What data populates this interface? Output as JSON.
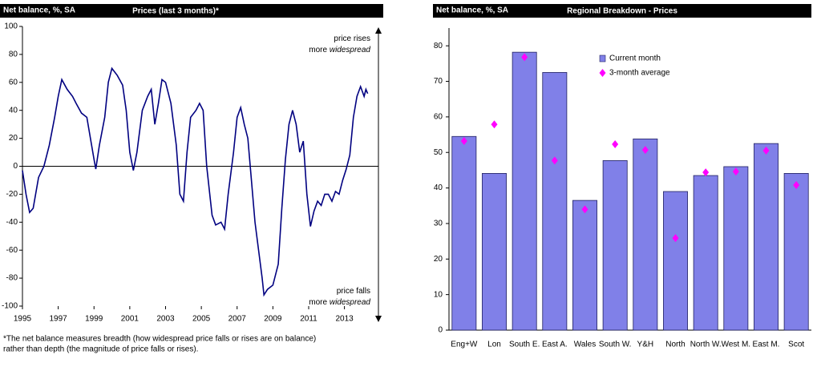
{
  "chart_data": [
    {
      "type": "line",
      "title": "Prices (last 3 months)*",
      "ylabel": "Net balance, %, SA",
      "x": [
        1995.0,
        1995.2,
        1995.4,
        1995.6,
        1995.9,
        1996.2,
        1996.5,
        1996.8,
        1997.0,
        1997.2,
        1997.5,
        1997.8,
        1998.0,
        1998.3,
        1998.6,
        1998.8,
        1999.0,
        1999.1,
        1999.3,
        1999.6,
        1999.8,
        2000.0,
        2000.3,
        2000.6,
        2000.8,
        2001.0,
        2001.2,
        2001.4,
        2001.7,
        2002.0,
        2002.2,
        2002.4,
        2002.6,
        2002.8,
        2003.0,
        2003.3,
        2003.6,
        2003.8,
        2004.0,
        2004.2,
        2004.4,
        2004.7,
        2004.9,
        2005.1,
        2005.3,
        2005.6,
        2005.8,
        2006.1,
        2006.3,
        2006.5,
        2006.8,
        2007.0,
        2007.2,
        2007.4,
        2007.6,
        2007.8,
        2008.0,
        2008.2,
        2008.4,
        2008.5,
        2008.7,
        2009.0,
        2009.3,
        2009.5,
        2009.7,
        2009.9,
        2010.1,
        2010.3,
        2010.5,
        2010.7,
        2010.9,
        2011.1,
        2011.3,
        2011.5,
        2011.7,
        2011.9,
        2012.1,
        2012.3,
        2012.5,
        2012.7,
        2012.9,
        2013.1,
        2013.3,
        2013.5,
        2013.7,
        2013.9,
        2014.1,
        2014.2,
        2014.3
      ],
      "series": [
        {
          "color": "#000080",
          "values": [
            -3,
            -20,
            -33,
            -30,
            -8,
            0,
            15,
            35,
            50,
            62,
            55,
            50,
            45,
            38,
            35,
            20,
            5,
            -2,
            15,
            35,
            60,
            70,
            65,
            58,
            40,
            10,
            -3,
            10,
            40,
            50,
            55,
            30,
            45,
            62,
            60,
            45,
            15,
            -20,
            -25,
            10,
            35,
            40,
            45,
            40,
            0,
            -35,
            -42,
            -40,
            -45,
            -20,
            10,
            35,
            42,
            30,
            20,
            -10,
            -40,
            -60,
            -80,
            -92,
            -88,
            -85,
            -70,
            -30,
            5,
            30,
            40,
            30,
            10,
            18,
            -20,
            -43,
            -32,
            -25,
            -28,
            -20,
            -20,
            -25,
            -18,
            -20,
            -10,
            -2,
            8,
            35,
            50,
            57,
            50,
            55,
            52
          ]
        }
      ],
      "xlim": [
        1995,
        2014.9
      ],
      "xticks": [
        1995,
        1997,
        1999,
        2001,
        2003,
        2005,
        2007,
        2009,
        2011,
        2013
      ],
      "ylim": [
        -100,
        100
      ],
      "yticks": [
        -100,
        -80,
        -60,
        -40,
        -20,
        0,
        20,
        40,
        60,
        80,
        100
      ],
      "annotations": [
        {
          "text": "price rises",
          "position": "top"
        },
        {
          "text": "more",
          "emphasis": "widespread",
          "position": "top"
        },
        {
          "text": "price falls",
          "position": "bottom"
        },
        {
          "text": "more",
          "emphasis": "widespread",
          "position": "bottom"
        }
      ],
      "footnote": [
        "*The net balance measures breadth (how widespread price falls or rises are on balance)",
        "rather than depth (the magnitude of price falls or rises)."
      ]
    },
    {
      "type": "bar",
      "title": "Regional Breakdown - Prices",
      "ylabel": "Net balance, %, SA",
      "categories": [
        "Eng+W",
        "Lon",
        "South E.",
        "East A.",
        "Wales",
        "South W.",
        "Y&H",
        "North",
        "North W.",
        "West M.",
        "East M.",
        "Scot"
      ],
      "series": [
        {
          "name": "Current month",
          "style": "bar",
          "color": "#8080e8",
          "values": [
            54.5,
            44.1,
            78.2,
            72.5,
            36.5,
            47.7,
            53.8,
            39,
            43.5,
            46,
            52.5,
            44.1
          ]
        },
        {
          "name": "3-month average",
          "style": "marker",
          "color": "#ff00ff",
          "values": [
            53.2,
            57.9,
            76.8,
            47.7,
            34,
            52.3,
            50.7,
            25.9,
            44.4,
            44.6,
            50.5,
            40.8
          ]
        }
      ],
      "ylim": [
        0,
        85
      ],
      "yticks": [
        0,
        10,
        20,
        30,
        40,
        50,
        60,
        70,
        80
      ]
    }
  ]
}
